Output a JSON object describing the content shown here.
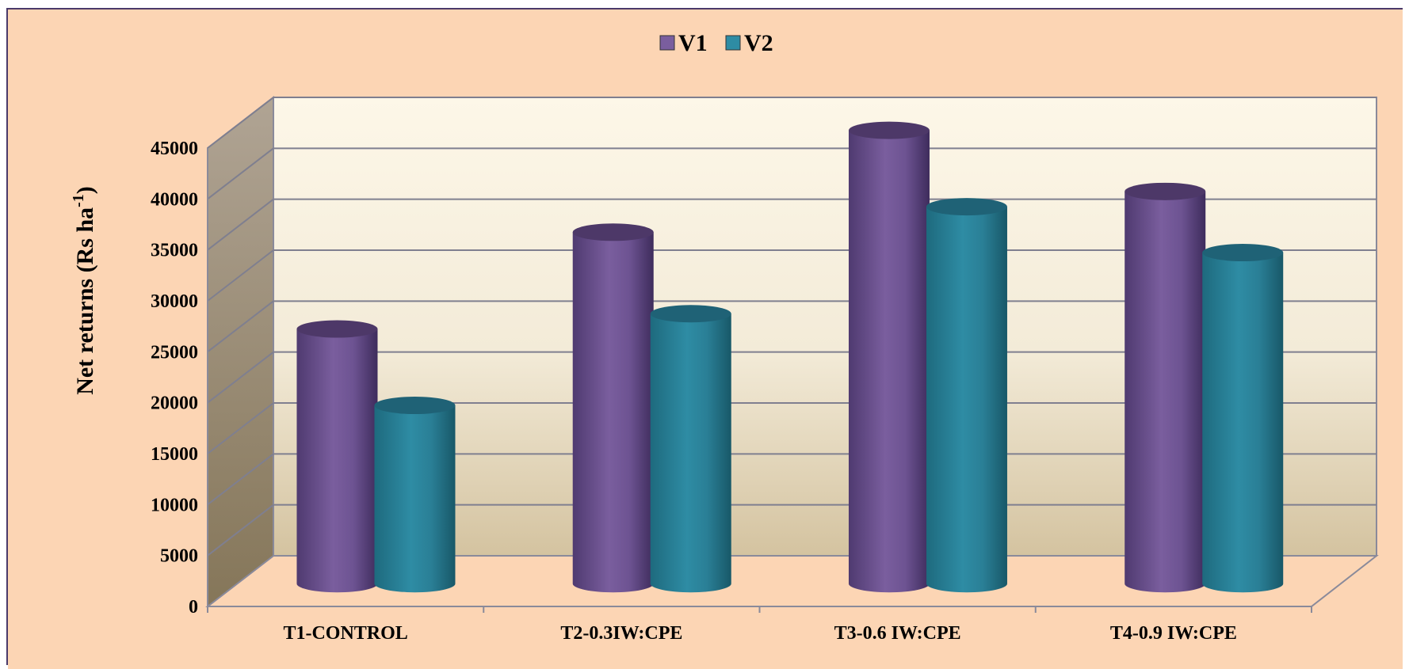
{
  "chart_data": {
    "type": "bar",
    "style": "3d-cylinder",
    "title": "",
    "xlabel": "",
    "ylabel": "Net returns (Rs ha",
    "ylabel_superscript": "-1",
    "ylabel_suffix": ")",
    "categories": [
      "T1-CONTROL",
      "T2-0.3IW:CPE",
      "T3-0.6 IW:CPE",
      "T4-0.9 IW:CPE"
    ],
    "series": [
      {
        "name": "V1",
        "values": [
          25000,
          34500,
          44500,
          38500
        ],
        "color": "#7a5e9e"
      },
      {
        "name": "V2",
        "values": [
          17500,
          26500,
          37000,
          32500
        ],
        "color": "#2e8ca4"
      }
    ],
    "ylim": [
      0,
      45000
    ],
    "yticks": [
      "0",
      "5000",
      "10000",
      "15000",
      "20000",
      "25000",
      "30000",
      "35000",
      "40000",
      "45000"
    ],
    "grid": true,
    "legend_position": "top-center",
    "colors": {
      "background": "#fcd5b4",
      "back_wall_top": "#fdf7e8",
      "back_wall_bottom": "#d4c3a0",
      "side_wall_top": "#b0a494",
      "side_wall_bottom": "#857659",
      "grid_line": "#7f7f8f"
    }
  }
}
